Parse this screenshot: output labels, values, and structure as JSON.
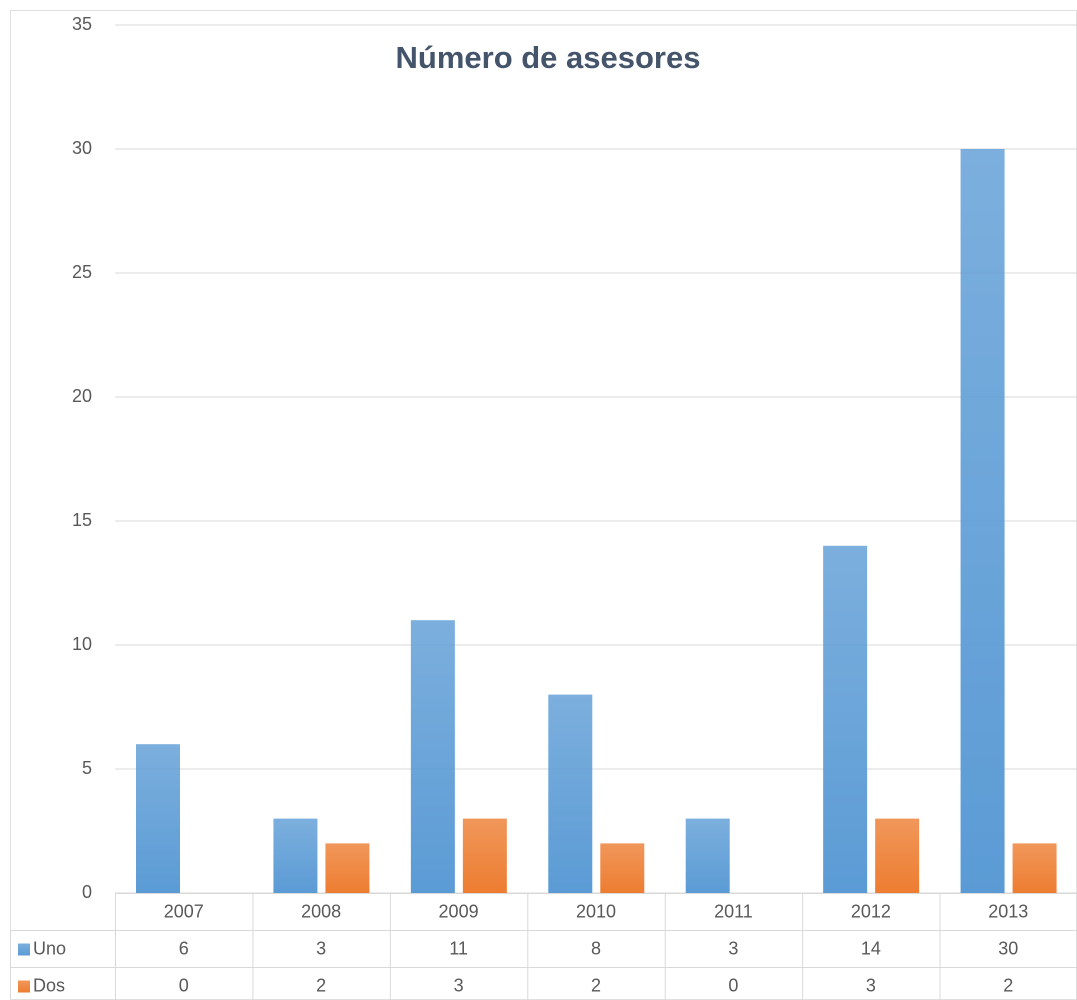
{
  "chart_data": {
    "type": "bar",
    "title": "Número de asesores",
    "categories": [
      "2007",
      "2008",
      "2009",
      "2010",
      "2011",
      "2012",
      "2013"
    ],
    "series": [
      {
        "name": "Uno",
        "color": "#5b9bd5",
        "values": [
          6,
          3,
          11,
          8,
          3,
          14,
          30
        ]
      },
      {
        "name": "Dos",
        "color": "#ed7d31",
        "values": [
          0,
          2,
          3,
          2,
          0,
          3,
          2
        ]
      }
    ],
    "ylim": [
      0,
      35
    ],
    "yticks": [
      0,
      5,
      10,
      15,
      20,
      25,
      30,
      35
    ],
    "grid": true,
    "data_table": true
  }
}
